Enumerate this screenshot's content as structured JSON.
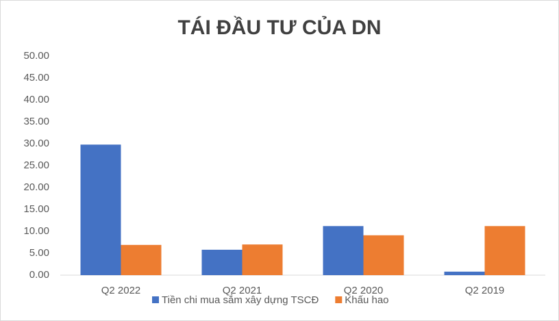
{
  "chart_data": {
    "type": "bar",
    "title": "TÁI ĐẦU TƯ CỦA DN",
    "categories": [
      "Q2 2022",
      "Q2 2021",
      "Q2 2020",
      "Q2 2019"
    ],
    "series": [
      {
        "name": "Tiền chi mua sắm xây dựng TSCĐ",
        "color": "#4472c4",
        "values": [
          29.8,
          5.8,
          11.2,
          0.8
        ]
      },
      {
        "name": "Khấu hao",
        "color": "#ed7d31",
        "values": [
          6.9,
          7.0,
          9.1,
          11.2
        ]
      }
    ],
    "ylim": [
      0,
      50
    ],
    "yticks": [
      {
        "value": 0,
        "label": "0.00"
      },
      {
        "value": 5,
        "label": "5.00"
      },
      {
        "value": 10,
        "label": "10.00"
      },
      {
        "value": 15,
        "label": "15.00"
      },
      {
        "value": 20,
        "label": "20.00"
      },
      {
        "value": 25,
        "label": "25.00"
      },
      {
        "value": 30,
        "label": "30.00"
      },
      {
        "value": 35,
        "label": "35.00"
      },
      {
        "value": 40,
        "label": "40.00"
      },
      {
        "value": 45,
        "label": "45.00"
      },
      {
        "value": 50,
        "label": "50.00"
      }
    ],
    "grid": false,
    "legend": "bottom"
  }
}
